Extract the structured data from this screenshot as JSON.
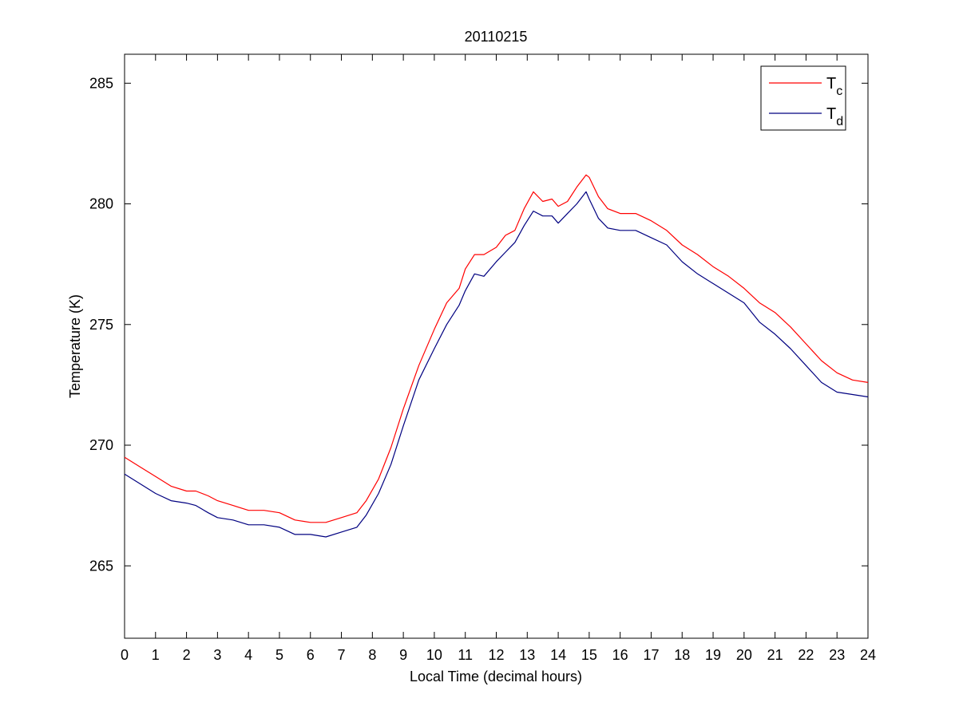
{
  "chart_data": {
    "type": "line",
    "title": "20110215",
    "xlabel": "Local Time (decimal hours)",
    "ylabel": "Temperature (K)",
    "xlim": [
      0,
      24
    ],
    "ylim": [
      262,
      286.2
    ],
    "xticks": [
      0,
      1,
      2,
      3,
      4,
      5,
      6,
      7,
      8,
      9,
      10,
      11,
      12,
      13,
      14,
      15,
      16,
      17,
      18,
      19,
      20,
      21,
      22,
      23,
      24
    ],
    "yticks": [
      265,
      270,
      275,
      280,
      285
    ],
    "grid": false,
    "legend_position": "top-right",
    "series": [
      {
        "name": "T",
        "subscript": "c",
        "color": "#ff0000",
        "x": [
          0,
          0.5,
          1,
          1.5,
          2,
          2.3,
          2.7,
          3,
          3.5,
          4,
          4.5,
          5,
          5.5,
          6,
          6.5,
          7,
          7.5,
          7.8,
          8.2,
          8.6,
          9,
          9.5,
          10,
          10.4,
          10.8,
          11,
          11.3,
          11.6,
          12,
          12.3,
          12.6,
          12.9,
          13.2,
          13.5,
          13.8,
          14,
          14.3,
          14.6,
          14.9,
          15,
          15.3,
          15.6,
          16,
          16.5,
          17,
          17.5,
          18,
          18.5,
          19,
          19.5,
          20,
          20.5,
          21,
          21.5,
          22,
          22.5,
          23,
          23.5,
          24
        ],
        "y": [
          269.5,
          269.1,
          268.7,
          268.3,
          268.1,
          268.1,
          267.9,
          267.7,
          267.5,
          267.3,
          267.3,
          267.2,
          266.9,
          266.8,
          266.8,
          267.0,
          267.2,
          267.7,
          268.6,
          269.9,
          271.5,
          273.3,
          274.8,
          275.9,
          276.5,
          277.3,
          277.9,
          277.9,
          278.2,
          278.7,
          278.9,
          279.8,
          280.5,
          280.1,
          280.2,
          279.9,
          280.1,
          280.7,
          281.2,
          281.1,
          280.3,
          279.8,
          279.6,
          279.6,
          279.3,
          278.9,
          278.3,
          277.9,
          277.4,
          277.0,
          276.5,
          275.9,
          275.5,
          274.9,
          274.2,
          273.5,
          273.0,
          272.7,
          272.6
        ]
      },
      {
        "name": "T",
        "subscript": "d",
        "color": "#000080",
        "x": [
          0,
          0.5,
          1,
          1.5,
          2,
          2.3,
          2.7,
          3,
          3.5,
          4,
          4.5,
          5,
          5.5,
          6,
          6.5,
          7,
          7.5,
          7.8,
          8.2,
          8.6,
          9,
          9.5,
          10,
          10.4,
          10.8,
          11,
          11.3,
          11.6,
          12,
          12.3,
          12.6,
          12.9,
          13.2,
          13.5,
          13.8,
          14,
          14.3,
          14.6,
          14.9,
          15,
          15.3,
          15.6,
          16,
          16.5,
          17,
          17.5,
          18,
          18.5,
          19,
          19.5,
          20,
          20.5,
          21,
          21.5,
          22,
          22.5,
          23,
          23.5,
          24
        ],
        "y": [
          268.8,
          268.4,
          268.0,
          267.7,
          267.6,
          267.5,
          267.2,
          267.0,
          266.9,
          266.7,
          266.7,
          266.6,
          266.3,
          266.3,
          266.2,
          266.4,
          266.6,
          267.1,
          268.0,
          269.2,
          270.8,
          272.7,
          274.0,
          275.0,
          275.8,
          276.4,
          277.1,
          277.0,
          277.6,
          278.0,
          278.4,
          279.1,
          279.7,
          279.5,
          279.5,
          279.2,
          279.6,
          280.0,
          280.5,
          280.2,
          279.4,
          279.0,
          278.9,
          278.9,
          278.6,
          278.3,
          277.6,
          277.1,
          276.7,
          276.3,
          275.9,
          275.1,
          274.6,
          274.0,
          273.3,
          272.6,
          272.2,
          272.1,
          272.0
        ]
      }
    ]
  }
}
